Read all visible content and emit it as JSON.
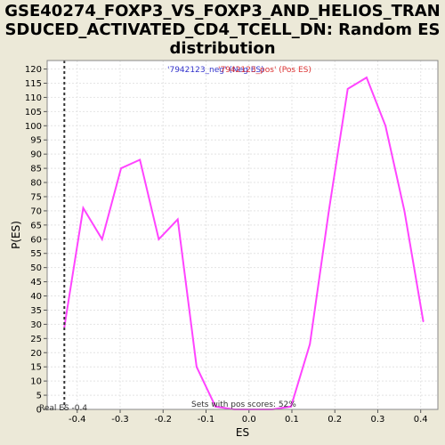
{
  "title_lines": [
    "GSE40274_FOXP3_VS_FOXP3_AND_HELIOS_TRAN",
    "SDUCED_ACTIVATED_CD4_TCELL_DN: Random ES",
    "distribution"
  ],
  "colors": {
    "background": "#ece9d8",
    "plot_bg": "#ffffff",
    "line": "#ff44ff",
    "neg_label": "#3333cc",
    "pos_label": "#dd3333",
    "grid": "#e4e4e4"
  },
  "chart_data": {
    "type": "line",
    "xlabel": "ES",
    "ylabel": "P(ES)",
    "xlim": [
      -0.47,
      0.44
    ],
    "ylim": [
      0,
      123
    ],
    "x_ticks": [
      -0.4,
      -0.3,
      -0.2,
      -0.1,
      0.0,
      0.1,
      0.2,
      0.3,
      0.4
    ],
    "x_tick_labels": [
      "-0.4",
      "-0.3",
      "-0.2",
      "-0.1",
      "0.0",
      "0.1",
      "0.2",
      "0.3",
      "0.4"
    ],
    "y_ticks": [
      0,
      5,
      10,
      15,
      20,
      25,
      30,
      35,
      40,
      45,
      50,
      55,
      60,
      65,
      70,
      75,
      80,
      85,
      90,
      95,
      100,
      105,
      110,
      115,
      120
    ],
    "grid": true,
    "series": [
      {
        "x": [
          -0.43,
          -0.386,
          -0.342,
          -0.298,
          -0.254,
          -0.21,
          -0.166,
          -0.122,
          -0.078,
          -0.034,
          0.01,
          0.054,
          0.098,
          0.142,
          0.186,
          0.23,
          0.274,
          0.318,
          0.362,
          0.406
        ],
        "y": [
          29,
          71,
          60,
          85,
          88,
          60,
          67,
          15,
          1,
          0,
          0,
          0,
          1,
          23,
          70,
          113,
          117,
          100,
          70,
          31
        ]
      }
    ],
    "real_es_x": -0.43,
    "annotations": {
      "neg_label": "'7942123_neg' (Neg ES)",
      "pos_label": "'7942123_pos' (Pos ES)",
      "sets_label": "Sets with pos scores: 52%",
      "real_es_label": "Real ES -0.4"
    }
  }
}
